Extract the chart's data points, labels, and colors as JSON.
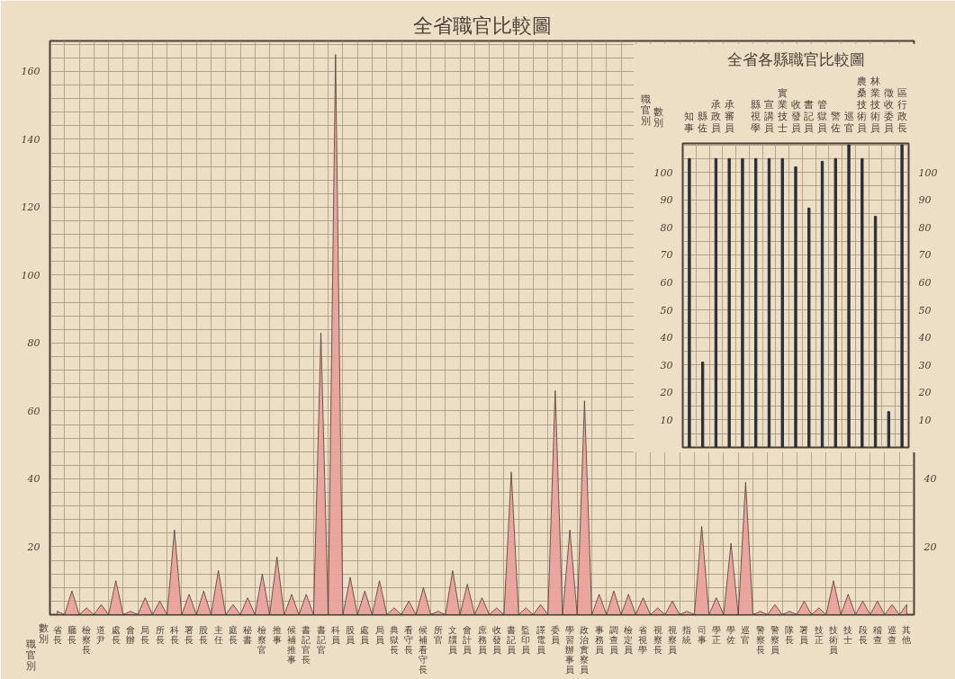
{
  "chart_data": [
    {
      "type": "area",
      "title": "全省職官比較圖",
      "annotations": [
        "職官別",
        "數別"
      ],
      "categories": [
        "省長",
        "廳長",
        "檢察長",
        "道尹",
        "處長",
        "會辦",
        "局長",
        "所長",
        "科長",
        "署長",
        "股長",
        "主任",
        "庭長",
        "秘書",
        "檢察官",
        "推事",
        "候補推事",
        "書記官長",
        "書記官",
        "科員",
        "股員",
        "處員",
        "局員",
        "典獄長",
        "看守長",
        "候補看守長",
        "所官",
        "文牘員",
        "會計員",
        "庶務員",
        "收發員",
        "書記員",
        "監印員",
        "譯電員",
        "委員",
        "學習辦事員",
        "政治實察員",
        "事務員",
        "調查員",
        "檢定員",
        "省視學",
        "視察長",
        "視察員",
        "指統",
        "司事",
        "學正",
        "學佐",
        "巡官",
        "警察長",
        "警察員",
        "隊長",
        "署員",
        "技正",
        "技術員",
        "技士",
        "段長",
        "稽查",
        "巡查",
        "其他"
      ],
      "series": [
        {
          "color": "#e9a19c",
          "values": [
            1,
            7,
            2,
            3,
            10,
            1,
            5,
            4,
            25,
            6,
            7,
            13,
            3,
            5,
            12,
            17,
            6,
            6,
            83,
            165,
            11,
            7,
            10,
            2,
            4,
            8,
            1,
            13,
            9,
            5,
            2,
            42,
            2,
            3,
            66,
            25,
            63,
            6,
            7,
            6,
            5,
            2,
            4,
            1,
            26,
            5,
            21,
            39,
            1,
            3,
            1,
            4,
            2,
            10,
            6,
            4,
            4,
            3,
            3
          ]
        }
      ],
      "ylim": [
        0,
        169
      ],
      "yticks": [
        {
          "value": 4,
          "label": null
        },
        {
          "value": 8,
          "label": null
        },
        {
          "value": 12,
          "label": null
        },
        {
          "value": 16,
          "label": null
        },
        20,
        {
          "value": 24,
          "label": null
        },
        {
          "value": 28,
          "label": null
        },
        {
          "value": 32,
          "label": null
        },
        {
          "value": 36,
          "label": null
        },
        40,
        {
          "value": 44,
          "label": null
        },
        {
          "value": 48,
          "label": null
        },
        {
          "value": 52,
          "label": null
        },
        {
          "value": 56,
          "label": null
        },
        60,
        {
          "value": 64,
          "label": null
        },
        {
          "value": 68,
          "label": null
        },
        {
          "value": 72,
          "label": null
        },
        {
          "value": 76,
          "label": null
        },
        80,
        {
          "value": 84,
          "label": null
        },
        {
          "value": 88,
          "label": null
        },
        {
          "value": 92,
          "label": null
        },
        {
          "value": 96,
          "label": null
        },
        100,
        {
          "value": 104,
          "label": null
        },
        {
          "value": 108,
          "label": null
        },
        {
          "value": 112,
          "label": null
        },
        {
          "value": 116,
          "label": null
        },
        120,
        {
          "value": 124,
          "label": null
        },
        {
          "value": 128,
          "label": null
        },
        {
          "value": 132,
          "label": null
        },
        {
          "value": 136,
          "label": null
        },
        140,
        {
          "value": 144,
          "label": null
        },
        {
          "value": 148,
          "label": null
        },
        {
          "value": 152,
          "label": null
        },
        {
          "value": 156,
          "label": null
        },
        160,
        {
          "value": 164,
          "label": null
        },
        {
          "value": 168,
          "label": null
        }
      ],
      "y2lim": [
        0,
        169
      ],
      "y2ticks": [
        20,
        40
      ],
      "grid": true
    },
    {
      "type": "bar",
      "title": "全省各縣職官比較圖",
      "annotations": [
        "職官別",
        "數別"
      ],
      "categories": [
        "知事",
        "縣佐",
        "承政員",
        "承審員",
        null,
        "縣視學",
        "宣講員",
        "實業技士",
        "收發員",
        "書記員",
        "管獄員",
        "警佐",
        "巡官",
        "農桑技術員",
        "林業技術員",
        "徵收委員",
        "區行政長"
      ],
      "series": [
        {
          "color": "#2b2f3a",
          "values": [
            105,
            31,
            105,
            105,
            105,
            105,
            105,
            105,
            102,
            87,
            104,
            105,
            110,
            105,
            84,
            13,
            110
          ]
        }
      ],
      "ylim": [
        0,
        110.5
      ],
      "yticks": [
        {
          "value": 5,
          "label": null
        },
        10,
        {
          "value": 15,
          "label": null
        },
        20,
        {
          "value": 25,
          "label": null
        },
        30,
        {
          "value": 35,
          "label": null
        },
        40,
        {
          "value": 45,
          "label": null
        },
        50,
        {
          "value": 55,
          "label": null
        },
        60,
        {
          "value": 65,
          "label": null
        },
        70,
        {
          "value": 75,
          "label": null
        },
        80,
        {
          "value": 85,
          "label": null
        },
        90,
        {
          "value": 95,
          "label": null
        },
        100,
        {
          "value": 105,
          "label": null
        },
        {
          "value": 110,
          "label": null
        }
      ],
      "y2lim": [
        0,
        110.5
      ],
      "y2ticks": [
        10,
        20,
        30,
        40,
        50,
        60,
        70,
        80,
        90,
        100
      ],
      "grid": true
    }
  ]
}
